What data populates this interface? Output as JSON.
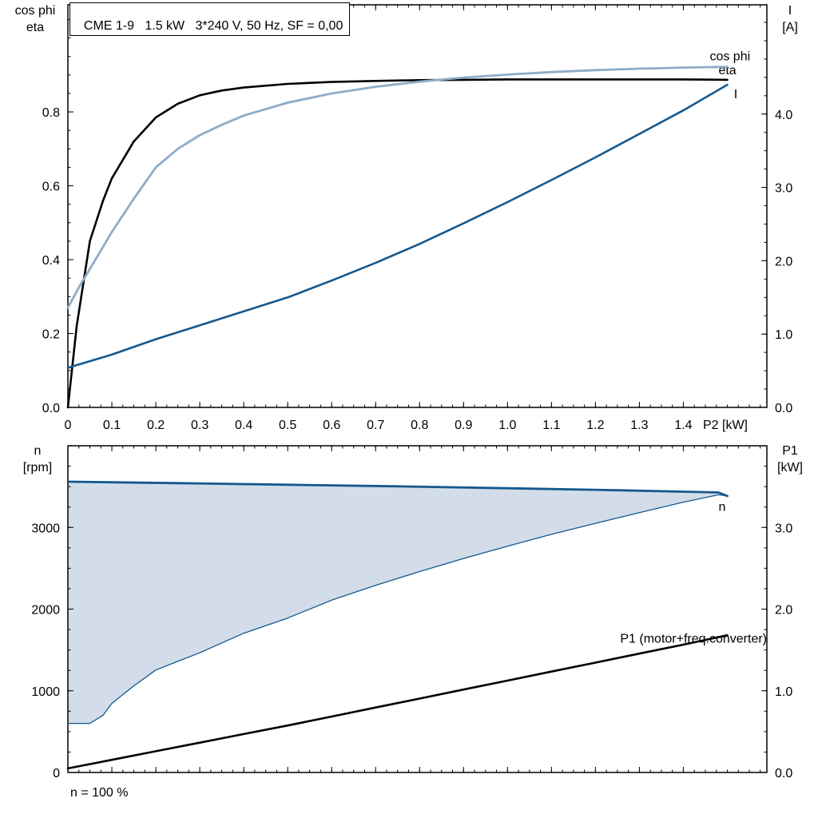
{
  "colors": {
    "frame": "#000000",
    "eta": "#000000",
    "cos_phi": "#8fabc6",
    "current": "#15588e",
    "speed": "#15588e",
    "speed_fill": "#d2dde9",
    "p1": "#000000"
  },
  "chart_data": [
    {
      "type": "line",
      "title": "CME 1-9   1.5 kW   3*240 V, 50 Hz, SF = 0,00",
      "left_axis": {
        "title_lines": [
          "cos phi",
          "eta"
        ],
        "min": 0,
        "max": 1.09,
        "tick_labels": [
          "0.0",
          "0.2",
          "0.4",
          "0.6",
          "0.8"
        ],
        "minor_step": 0.05
      },
      "right_axis": {
        "title_lines": [
          "I",
          "[A]"
        ],
        "min": 0,
        "max": 5.49,
        "tick_labels": [
          "0.0",
          "1.0",
          "2.0",
          "3.0",
          "4.0"
        ],
        "minor_step": 0.25
      },
      "x_axis": {
        "title": "P2 [kW]",
        "min": 0,
        "max": 1.59,
        "tick_labels": [
          "0",
          "0.1",
          "0.2",
          "0.3",
          "0.4",
          "0.5",
          "0.6",
          "0.7",
          "0.8",
          "0.9",
          "1.0",
          "1.1",
          "1.2",
          "1.3",
          "1.4"
        ],
        "minor_step": 0.025,
        "show_labels": true
      },
      "series": [
        {
          "key": "eta",
          "axis": "left",
          "color_key": "eta",
          "width": 2.6,
          "x": [
            0,
            0.02,
            0.05,
            0.08,
            0.1,
            0.15,
            0.2,
            0.25,
            0.3,
            0.35,
            0.4,
            0.5,
            0.6,
            0.7,
            0.8,
            0.9,
            1.0,
            1.1,
            1.2,
            1.3,
            1.4,
            1.5
          ],
          "y": [
            0,
            0.22,
            0.45,
            0.56,
            0.62,
            0.72,
            0.785,
            0.822,
            0.845,
            0.858,
            0.866,
            0.876,
            0.881,
            0.884,
            0.886,
            0.887,
            0.888,
            0.888,
            0.888,
            0.888,
            0.888,
            0.887
          ],
          "label": {
            "text": "eta",
            "x": 1.48,
            "y": 0.913,
            "anchor": "start"
          }
        },
        {
          "key": "cos-phi",
          "axis": "left",
          "color_key": "cos_phi",
          "width": 2.8,
          "x": [
            0,
            0.025,
            0.05,
            0.075,
            0.1,
            0.15,
            0.2,
            0.25,
            0.3,
            0.35,
            0.4,
            0.5,
            0.6,
            0.7,
            0.8,
            0.9,
            1.0,
            1.1,
            1.2,
            1.3,
            1.4,
            1.5
          ],
          "y": [
            0.27,
            0.325,
            0.375,
            0.425,
            0.475,
            0.565,
            0.65,
            0.7,
            0.737,
            0.765,
            0.79,
            0.825,
            0.85,
            0.868,
            0.882,
            0.893,
            0.901,
            0.908,
            0.913,
            0.917,
            0.92,
            0.922
          ],
          "label": {
            "text": "cos phi",
            "x": 1.46,
            "y": 0.951,
            "anchor": "start"
          }
        },
        {
          "key": "current",
          "axis": "right",
          "color_key": "current",
          "width": 2.6,
          "x": [
            0,
            0.1,
            0.2,
            0.3,
            0.4,
            0.5,
            0.6,
            0.7,
            0.8,
            0.9,
            1.0,
            1.1,
            1.2,
            1.3,
            1.4,
            1.5
          ],
          "y": [
            0.54,
            0.72,
            0.93,
            1.12,
            1.31,
            1.5,
            1.73,
            1.97,
            2.23,
            2.51,
            2.8,
            3.1,
            3.41,
            3.73,
            4.05,
            4.4
          ],
          "label": {
            "text": "I",
            "x": 1.515,
            "y": 4.27,
            "anchor": "start"
          }
        }
      ]
    },
    {
      "type": "line",
      "footnote": "n = 100 %",
      "left_axis": {
        "title_lines": [
          "n",
          "[rpm]"
        ],
        "min": 0,
        "max": 4000,
        "tick_labels": [
          "0",
          "1000",
          "2000",
          "3000"
        ],
        "minor_step": 250
      },
      "right_axis": {
        "title_lines": [
          "P1",
          "[kW]"
        ],
        "min": 0,
        "max": 4.0,
        "tick_labels": [
          "0.0",
          "1.0",
          "2.0",
          "3.0"
        ],
        "minor_step": 0.25
      },
      "x_axis": {
        "title": "",
        "min": 0,
        "max": 1.59,
        "tick_labels": [
          "0",
          "0.1",
          "0.2",
          "0.3",
          "0.4",
          "0.5",
          "0.6",
          "0.7",
          "0.8",
          "0.9",
          "1.0",
          "1.1",
          "1.2",
          "1.3",
          "1.4"
        ],
        "minor_step": 0.025,
        "show_labels": false
      },
      "series": [
        {
          "key": "speed-min",
          "axis": "left",
          "color_key": "speed",
          "width": 1.3,
          "fill_to": "speed-max",
          "fill_color_key": "speed_fill",
          "x": [
            0,
            0.05,
            0.08,
            0.1,
            0.15,
            0.2,
            0.25,
            0.3,
            0.4,
            0.5,
            0.6,
            0.7,
            0.8,
            0.9,
            1.0,
            1.1,
            1.2,
            1.3,
            1.4,
            1.48,
            1.5
          ],
          "y": [
            600,
            600,
            700,
            845,
            1060,
            1255,
            1360,
            1465,
            1705,
            1890,
            2110,
            2290,
            2460,
            2620,
            2770,
            2915,
            3050,
            3180,
            3310,
            3400,
            3385
          ]
        },
        {
          "key": "speed-max",
          "axis": "left",
          "color_key": "speed",
          "width": 2.8,
          "x": [
            0,
            0.25,
            0.5,
            0.75,
            1.0,
            1.25,
            1.4,
            1.48,
            1.5
          ],
          "y": [
            3560,
            3542,
            3523,
            3503,
            3480,
            3455,
            3438,
            3428,
            3385
          ],
          "label": {
            "text": "n",
            "x": 1.48,
            "y": 3250,
            "anchor": "start"
          }
        },
        {
          "key": "p1",
          "axis": "right",
          "color_key": "p1",
          "width": 2.6,
          "x": [
            0,
            0.1,
            0.2,
            0.3,
            0.4,
            0.5,
            0.6,
            0.7,
            0.8,
            0.9,
            1.0,
            1.1,
            1.2,
            1.3,
            1.4,
            1.5
          ],
          "y": [
            0.05,
            0.155,
            0.26,
            0.365,
            0.47,
            0.575,
            0.685,
            0.795,
            0.905,
            1.015,
            1.125,
            1.235,
            1.345,
            1.455,
            1.565,
            1.68
          ],
          "label": {
            "text": "P1 (motor+freq.converter)",
            "x": 1.59,
            "y": 1.64,
            "anchor": "end"
          }
        }
      ]
    }
  ]
}
